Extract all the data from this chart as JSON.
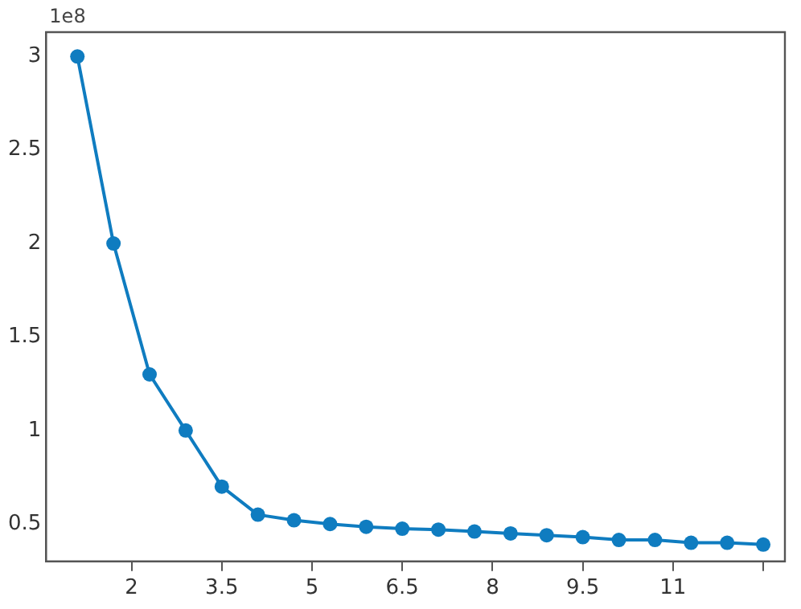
{
  "chart_data": {
    "type": "line",
    "x": [
      1.1,
      1.7,
      2.3,
      2.9,
      3.5,
      4.1,
      4.7,
      5.3,
      5.9,
      6.5,
      7.1,
      7.7,
      8.3,
      8.9,
      9.5,
      10.1,
      10.7,
      11.3,
      11.9,
      12.5
    ],
    "series": [
      {
        "color": "#0f7cc0",
        "values": [
          3,
          2,
          1.3,
          1,
          0.7,
          0.55,
          0.52,
          0.5,
          0.485,
          0.475,
          0.47,
          0.46,
          0.45,
          0.44,
          0.43,
          0.415,
          0.415,
          0.4,
          0.4,
          0.39
        ]
      }
    ],
    "xlim": [
      0.58,
      12.86
    ],
    "xticks": [
      2,
      3.5,
      5,
      6.5,
      8,
      9.5,
      11,
      {
        "value": 12.5,
        "label": null
      }
    ],
    "ylim": [
      0.3,
      3.13
    ],
    "yticks": [
      0.5,
      1,
      1.5,
      2,
      2.5,
      3
    ],
    "annotations": [
      "1e8"
    ],
    "grid": false,
    "legend": false,
    "marker": "circle",
    "line_style": "solid"
  }
}
